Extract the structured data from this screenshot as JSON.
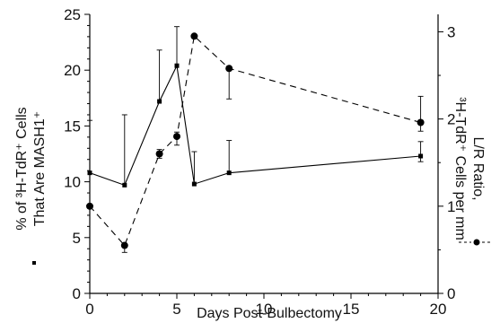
{
  "chart_data": {
    "type": "line",
    "xlabel": "Days Post-Bulbectomy",
    "ylabel_left": [
      "% of ³H-TdR⁺ Cells",
      "That Are MASH1⁺"
    ],
    "ylabel_right": [
      "L/R Ratio,",
      "³H-TdR⁺ Cells per mm"
    ],
    "xlim": [
      0,
      20
    ],
    "ylim_left": [
      0,
      25
    ],
    "ylim_right": [
      0,
      3.2
    ],
    "x_ticks": [
      0,
      5,
      10,
      15,
      20
    ],
    "y_ticks_left": [
      0,
      5,
      10,
      15,
      20,
      25
    ],
    "y_ticks_right": [
      0,
      1,
      2,
      3
    ],
    "grid": false,
    "series": [
      {
        "axis": "left",
        "style": "solid",
        "marker": "square",
        "x": [
          0,
          2,
          4,
          5,
          6,
          8,
          19
        ],
        "y": [
          10.8,
          9.7,
          17.2,
          20.4,
          9.8,
          10.8,
          12.3
        ],
        "err_up": [
          4.7,
          6.3,
          4.6,
          3.5,
          2.9,
          2.9,
          1.3
        ],
        "err_down": [
          0,
          0,
          0,
          0,
          0,
          0,
          0.5
        ]
      },
      {
        "axis": "right",
        "style": "dashed",
        "marker": "circle",
        "x": [
          0,
          2,
          4,
          5,
          6,
          8,
          19
        ],
        "y": [
          1.0,
          0.55,
          1.6,
          1.8,
          2.95,
          2.58,
          1.96
        ],
        "err_up": [
          0,
          0,
          0.05,
          0.05,
          0,
          0,
          0.3
        ],
        "err_down": [
          0,
          0.08,
          0.05,
          0.1,
          0,
          0.35,
          0.1
        ]
      }
    ]
  }
}
